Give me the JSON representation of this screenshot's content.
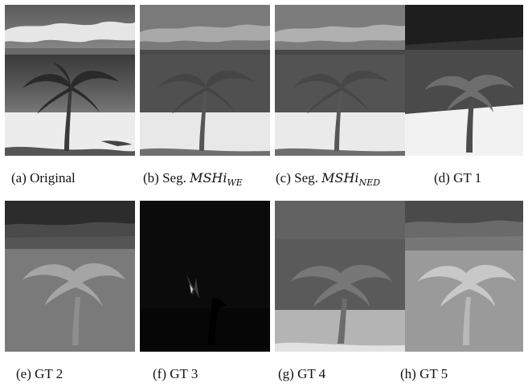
{
  "figure": {
    "panels": [
      {
        "id": "a",
        "kind": "original",
        "caption": "(a) Original"
      },
      {
        "id": "b",
        "kind": "segmented",
        "caption_prefix": "(b) Seg. ",
        "caption_math": "MSHi",
        "caption_sub": "WE"
      },
      {
        "id": "c",
        "kind": "segmented",
        "caption_prefix": "(c) Seg. ",
        "caption_math": "MSHi",
        "caption_sub": "NED"
      },
      {
        "id": "d",
        "kind": "gt",
        "caption": "(d) GT 1"
      },
      {
        "id": "e",
        "kind": "gt",
        "caption": "(e) GT 2"
      },
      {
        "id": "f",
        "kind": "gt",
        "caption": "(f) GT 3"
      },
      {
        "id": "g",
        "kind": "gt",
        "caption": "(g) GT 4"
      },
      {
        "id": "h",
        "kind": "gt",
        "caption": "(h) GT 5"
      }
    ]
  }
}
